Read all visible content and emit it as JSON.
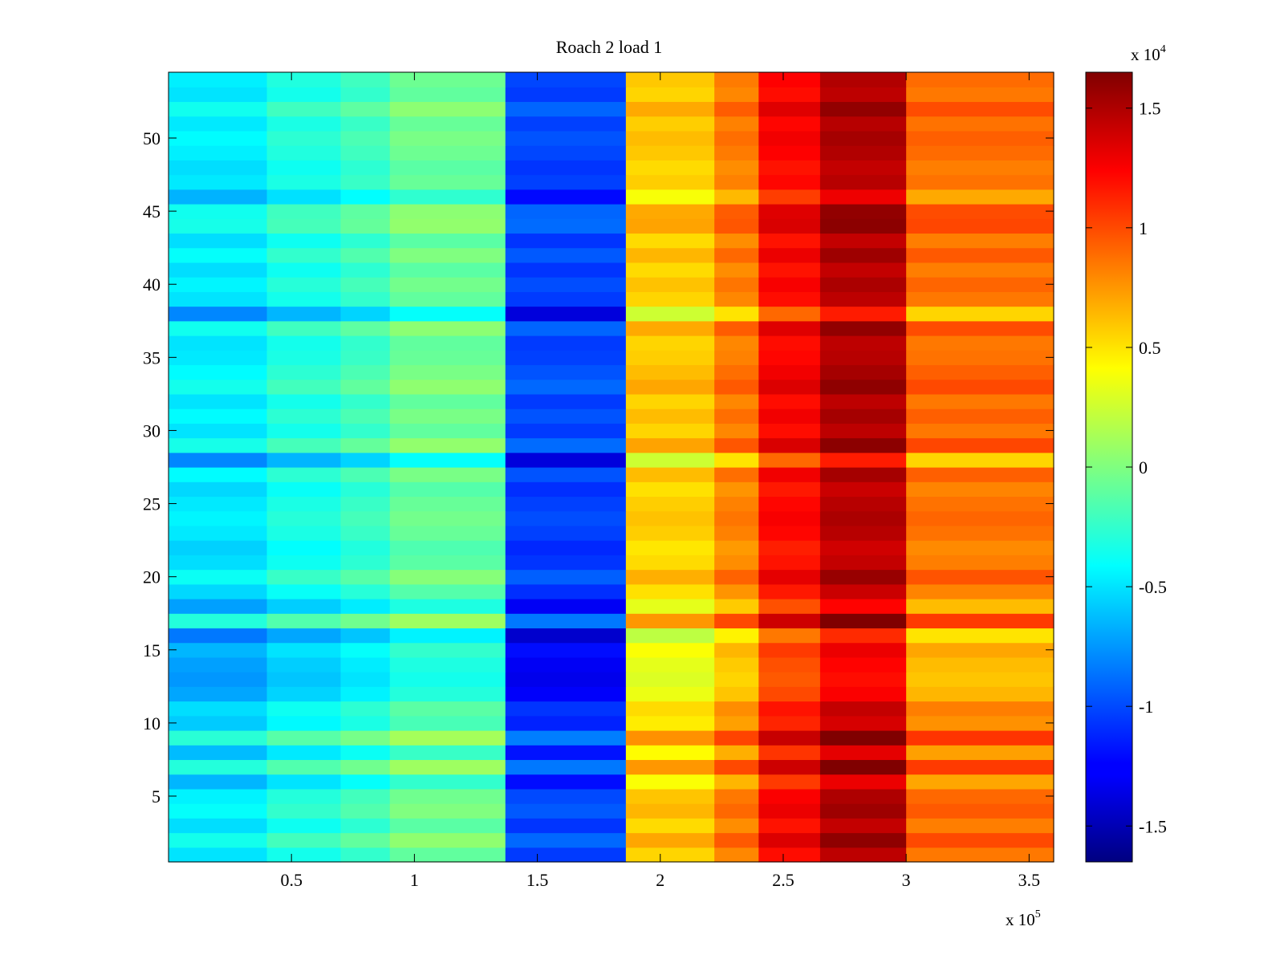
{
  "chart_data": {
    "type": "heatmap",
    "title": "Roach 2 load 1",
    "colormap": "jet",
    "x_range": [
      0,
      360000
    ],
    "y_range": [
      0.5,
      54.5
    ],
    "x_ticks": [
      50000,
      100000,
      150000,
      200000,
      250000,
      300000,
      350000
    ],
    "x_tick_labels": [
      "0.5",
      "1",
      "1.5",
      "2",
      "2.5",
      "3",
      "3.5"
    ],
    "x_exponent_label": "x 10",
    "x_exponent_power": "5",
    "y_ticks": [
      5,
      10,
      15,
      20,
      25,
      30,
      35,
      40,
      45,
      50
    ],
    "y_tick_labels": [
      "5",
      "10",
      "15",
      "20",
      "25",
      "30",
      "35",
      "40",
      "45",
      "50"
    ],
    "colorbar": {
      "range": [
        -16500,
        16500
      ],
      "ticks": [
        -15000,
        -10000,
        -5000,
        0,
        5000,
        10000,
        15000
      ],
      "tick_labels": [
        "-1.5",
        "-1",
        "-0.5",
        "0",
        "0.5",
        "1",
        "1.5"
      ],
      "exponent_label": "x 10",
      "exponent_power": "4"
    },
    "x_bins": [
      0,
      40000,
      70000,
      90000,
      137000,
      186000,
      222000,
      240000,
      265000,
      300000,
      360000
    ],
    "band_base_values": [
      -6000,
      -4500,
      -3500,
      -2000,
      -11500,
      4500,
      7000,
      11000,
      13500,
      7500
    ],
    "row_offsets": [
      1000,
      2500,
      800,
      2000,
      1500,
      -500,
      3000,
      -300,
      3200,
      200,
      800,
      -1000,
      -1500,
      -1200,
      -500,
      -2500,
      3000,
      -1200,
      600,
      2200,
      800,
      400,
      1200,
      1600,
      1200,
      600,
      1800,
      -2000,
      2600,
      1000,
      1800,
      1000,
      2500,
      1800,
      1200,
      1000,
      2400,
      -2000,
      1000,
      1600,
      800,
      2000,
      800,
      2600,
      2400,
      -600,
      1200,
      800,
      1400,
      1800,
      1200,
      2400,
      1000,
      1400
    ]
  }
}
